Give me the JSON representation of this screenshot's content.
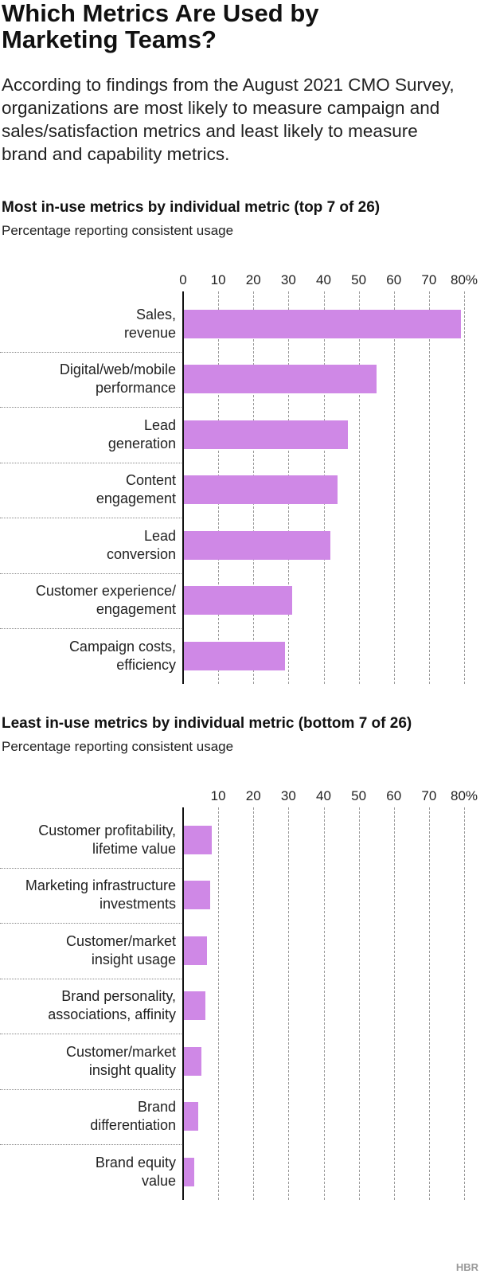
{
  "header": {
    "title": "Which Metrics Are Used by Marketing Teams?",
    "intro": "According to findings from the August 2021 CMO Survey, organizations are most likely to measure campaign and sales/satisfaction metrics and least likely to measure brand and capability metrics."
  },
  "chart_data": [
    {
      "type": "bar",
      "orientation": "horizontal",
      "title": "Most in-use metrics by individual metric (top 7 of 26)",
      "subtitle": "Percentage reporting consistent usage",
      "categories": [
        "Sales,\nrevenue",
        "Digital/web/mobile\nperformance",
        "Lead\ngeneration",
        "Content\nengagement",
        "Lead\nconversion",
        "Customer experience/\nengagement",
        "Campaign costs,\nefficiency"
      ],
      "values": [
        79,
        55,
        47,
        44,
        42,
        31,
        29
      ],
      "color": "#cf88e6",
      "xlim": [
        0,
        80
      ],
      "xticks": [
        0,
        10,
        20,
        30,
        40,
        50,
        60,
        70,
        {
          "value": 80,
          "label": "80%"
        }
      ],
      "grid": true
    },
    {
      "type": "bar",
      "orientation": "horizontal",
      "title": "Least in-use metrics by individual metric (bottom 7 of 26)",
      "subtitle": "Percentage reporting consistent usage",
      "categories": [
        "Customer profitability,\nlifetime value",
        "Marketing infrastructure\ninvestments",
        "Customer/market\ninsight usage",
        "Brand personality,\nassociations, affinity",
        "Customer/market\ninsight quality",
        "Brand\ndifferentiation",
        "Brand equity\nvalue"
      ],
      "values": [
        8.2,
        7.7,
        6.8,
        6.3,
        5.2,
        4.3,
        3.2
      ],
      "color": "#cf88e6",
      "xlim": [
        0,
        80
      ],
      "xticks": [
        10,
        20,
        30,
        40,
        50,
        60,
        70,
        {
          "value": 80,
          "label": "80%"
        }
      ],
      "grid": true
    }
  ],
  "footer": {
    "logo": "HBR"
  }
}
